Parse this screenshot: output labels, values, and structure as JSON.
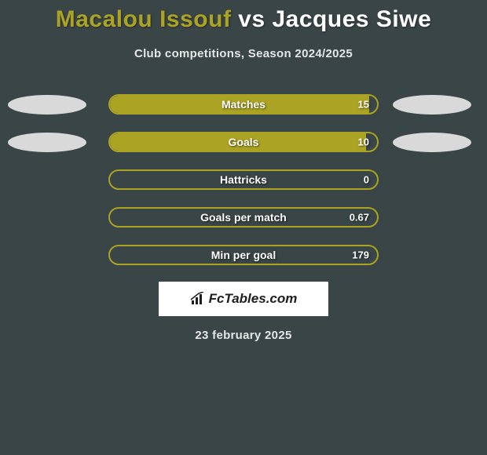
{
  "header": {
    "player1": "Macalou Issouf",
    "vs": "vs",
    "player2": "Jacques Siwe",
    "player1_color": "#aaa323",
    "player2_color": "#ffffff",
    "title_fontsize": 30
  },
  "subtitle": "Club competitions, Season 2024/2025",
  "colors": {
    "background": "#3a4547",
    "bar_border": "#aaa323",
    "bar_fill": "#aaa323",
    "ellipse": "#d9d9d9",
    "text": "#ffffff",
    "subtitle_text": "#e6e6e6"
  },
  "layout": {
    "bar_track_width": 344,
    "bar_track_height": 26,
    "bar_border_radius": 13,
    "row_gap": 20,
    "ellipse_width": 100,
    "ellipse_height": 25
  },
  "stats": [
    {
      "label": "Matches",
      "value": "15",
      "fill_pct": 97,
      "show_left_ellipse": true,
      "show_right_ellipse": true
    },
    {
      "label": "Goals",
      "value": "10",
      "fill_pct": 96,
      "show_left_ellipse": true,
      "show_right_ellipse": true
    },
    {
      "label": "Hattricks",
      "value": "0",
      "fill_pct": 0,
      "show_left_ellipse": false,
      "show_right_ellipse": false
    },
    {
      "label": "Goals per match",
      "value": "0.67",
      "fill_pct": 0,
      "show_left_ellipse": false,
      "show_right_ellipse": false
    },
    {
      "label": "Min per goal",
      "value": "179",
      "fill_pct": 0,
      "show_left_ellipse": false,
      "show_right_ellipse": false
    }
  ],
  "logo": {
    "text": "FcTables.com",
    "box_bg": "#ffffff",
    "text_color": "#1e1e1e"
  },
  "date": "23 february 2025"
}
